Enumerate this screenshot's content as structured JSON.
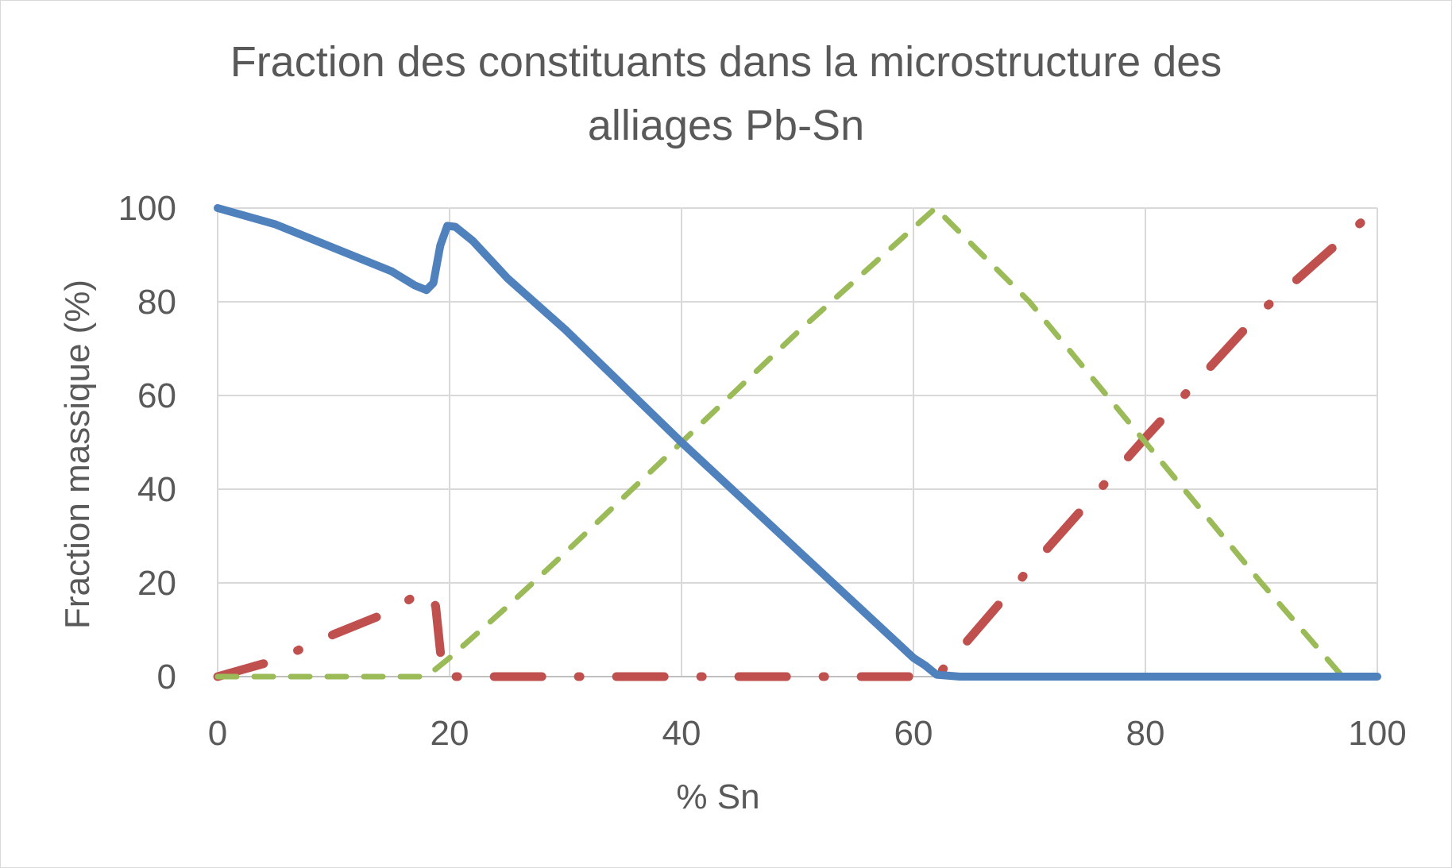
{
  "chart_data": {
    "type": "line",
    "title_lines": [
      "Fraction des constituants dans la microstructure des",
      "alliages Pb-Sn"
    ],
    "xlabel": "% Sn",
    "ylabel": "Fraction massique (%)",
    "xlim": [
      0,
      100
    ],
    "ylim": [
      0,
      100
    ],
    "x_ticks": [
      0,
      20,
      40,
      60,
      80,
      100
    ],
    "y_ticks": [
      0,
      20,
      40,
      60,
      80,
      100
    ],
    "grid": true,
    "legend": "none",
    "series": [
      {
        "color": "#4f81bd",
        "style": "solid",
        "points": [
          [
            0,
            100
          ],
          [
            5,
            96.5
          ],
          [
            10,
            91.5
          ],
          [
            15,
            86.5
          ],
          [
            17,
            83.5
          ],
          [
            18,
            82.5
          ],
          [
            18.6,
            84
          ],
          [
            19.2,
            92
          ],
          [
            19.8,
            96.2
          ],
          [
            20.5,
            96
          ],
          [
            22,
            93
          ],
          [
            25,
            85
          ],
          [
            30,
            74
          ],
          [
            40,
            50
          ],
          [
            50,
            27
          ],
          [
            60,
            4
          ],
          [
            61,
            2.4
          ],
          [
            62,
            0.4
          ],
          [
            64,
            0
          ],
          [
            100,
            0
          ]
        ]
      },
      {
        "color": "#c0504d",
        "style": "dash-dot",
        "points": [
          [
            0,
            0
          ],
          [
            5,
            3.5
          ],
          [
            10,
            9
          ],
          [
            14,
            13
          ],
          [
            16,
            15.5
          ],
          [
            17.5,
            18.2
          ],
          [
            18.3,
            18
          ],
          [
            18.8,
            15
          ],
          [
            19.2,
            5.5
          ],
          [
            19.5,
            0
          ],
          [
            62,
            0
          ],
          [
            70,
            23
          ],
          [
            80,
            51
          ],
          [
            90,
            78
          ],
          [
            100,
            100
          ]
        ]
      },
      {
        "color": "#9bbb59",
        "style": "dashed",
        "points": [
          [
            0,
            0
          ],
          [
            17.5,
            0
          ],
          [
            18.5,
            1
          ],
          [
            20,
            4
          ],
          [
            25,
            15
          ],
          [
            30,
            26.5
          ],
          [
            40,
            50
          ],
          [
            50,
            73.5
          ],
          [
            61.9,
            100
          ],
          [
            70,
            80
          ],
          [
            80,
            50
          ],
          [
            90,
            20
          ],
          [
            97,
            0
          ],
          [
            100,
            0
          ]
        ]
      }
    ]
  }
}
